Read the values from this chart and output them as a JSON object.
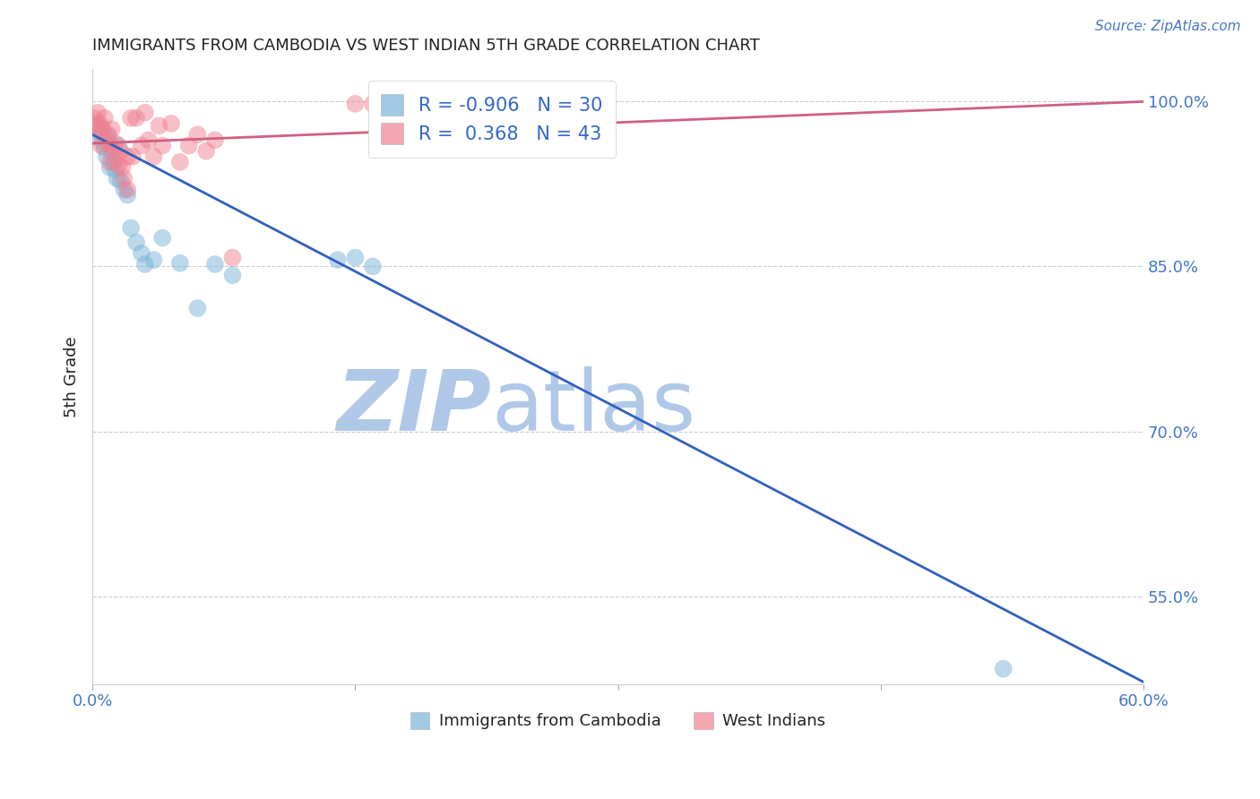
{
  "title": "IMMIGRANTS FROM CAMBODIA VS WEST INDIAN 5TH GRADE CORRELATION CHART",
  "source": "Source: ZipAtlas.com",
  "xlabel_cambodia": "Immigrants from Cambodia",
  "xlabel_west_indian": "West Indians",
  "ylabel": "5th Grade",
  "xlim": [
    0.0,
    0.6
  ],
  "ylim": [
    0.47,
    1.03
  ],
  "yticks": [
    0.55,
    0.7,
    0.85,
    1.0
  ],
  "ytick_labels": [
    "55.0%",
    "70.0%",
    "85.0%",
    "100.0%"
  ],
  "xticks": [
    0.0,
    0.15,
    0.3,
    0.45,
    0.6
  ],
  "xtick_labels": [
    "0.0%",
    "",
    "",
    "",
    "60.0%"
  ],
  "cambodia_R": -0.906,
  "cambodia_N": 30,
  "west_indian_R": 0.368,
  "west_indian_N": 43,
  "cambodia_color": "#7ab3d9",
  "west_indian_color": "#f08090",
  "cambodia_line_color": "#3060c0",
  "west_indian_line_color": "#d06080",
  "watermark_zip": "ZIP",
  "watermark_atlas": "atlas",
  "watermark_color": "#b0c8e8",
  "title_color": "#222222",
  "tick_color": "#4477cc",
  "grid_color": "#cccccc",
  "background_color": "#ffffff",
  "cambodia_scatter_x": [
    0.003,
    0.004,
    0.005,
    0.006,
    0.007,
    0.008,
    0.009,
    0.01,
    0.011,
    0.012,
    0.013,
    0.014,
    0.015,
    0.016,
    0.018,
    0.02,
    0.022,
    0.025,
    0.028,
    0.03,
    0.035,
    0.04,
    0.05,
    0.06,
    0.07,
    0.08,
    0.14,
    0.15,
    0.16,
    0.52
  ],
  "cambodia_scatter_y": [
    0.98,
    0.972,
    0.968,
    0.963,
    0.958,
    0.95,
    0.968,
    0.94,
    0.955,
    0.945,
    0.938,
    0.93,
    0.96,
    0.928,
    0.92,
    0.915,
    0.885,
    0.872,
    0.862,
    0.852,
    0.856,
    0.876,
    0.853,
    0.812,
    0.852,
    0.842,
    0.856,
    0.858,
    0.85,
    0.484
  ],
  "west_indian_scatter_x": [
    0.001,
    0.002,
    0.003,
    0.004,
    0.005,
    0.005,
    0.006,
    0.007,
    0.008,
    0.009,
    0.01,
    0.01,
    0.011,
    0.012,
    0.013,
    0.014,
    0.015,
    0.016,
    0.017,
    0.018,
    0.02,
    0.02,
    0.022,
    0.023,
    0.025,
    0.028,
    0.03,
    0.032,
    0.035,
    0.038,
    0.04,
    0.045,
    0.05,
    0.055,
    0.06,
    0.065,
    0.07,
    0.08,
    0.15,
    0.16,
    0.175,
    0.2,
    0.28
  ],
  "west_indian_scatter_y": [
    0.985,
    0.978,
    0.99,
    0.98,
    0.975,
    0.96,
    0.975,
    0.985,
    0.965,
    0.97,
    0.96,
    0.945,
    0.975,
    0.958,
    0.962,
    0.948,
    0.942,
    0.955,
    0.94,
    0.93,
    0.95,
    0.92,
    0.985,
    0.95,
    0.985,
    0.96,
    0.99,
    0.965,
    0.95,
    0.978,
    0.96,
    0.98,
    0.945,
    0.96,
    0.97,
    0.955,
    0.965,
    0.858,
    0.998,
    0.998,
    0.975,
    0.968,
    0.985
  ],
  "cambodia_trend_x": [
    0.0,
    0.6
  ],
  "cambodia_trend_y": [
    0.97,
    0.472
  ],
  "west_indian_trend_x": [
    0.0,
    0.6
  ],
  "west_indian_trend_y": [
    0.962,
    1.0
  ],
  "legend_R_color": "#222222",
  "legend_val_color": "#3366cc"
}
